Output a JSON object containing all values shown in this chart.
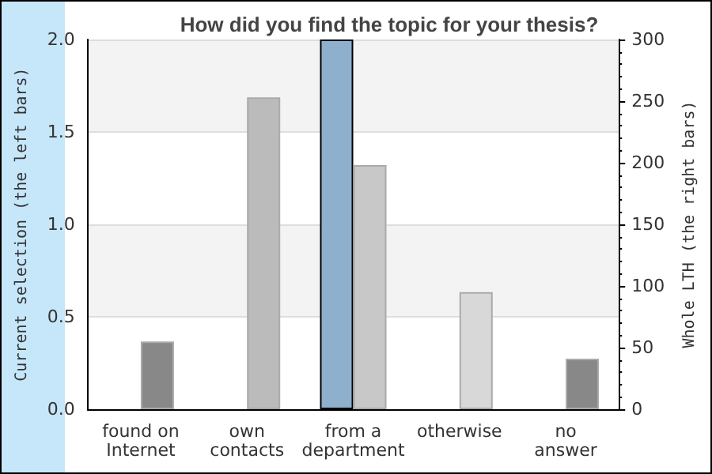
{
  "chart_data": {
    "type": "bar",
    "title": "How did you find the topic for your thesis?",
    "ylabel": "Current selection (the left bars)",
    "y2label": "Whole LTH (the right bars)",
    "categories": [
      "found on\nInternet",
      "own\ncontacts",
      "from a\ndepartment",
      "otherwise",
      "no\nanswer"
    ],
    "series": [
      {
        "color": "#8fb0cc",
        "values": [
          0,
          0,
          2,
          0,
          0
        ]
      },
      {
        "axis": "y2",
        "colors": [
          "#888888",
          "#bbbbbb",
          "#c8c8c8",
          "#d8d8d8",
          "#888888"
        ],
        "values": [
          55,
          253,
          198,
          95,
          41
        ]
      }
    ],
    "ylim": [
      0,
      2
    ],
    "yticks": [
      {
        "value": 0,
        "label": "0.0"
      },
      {
        "value": 0.5,
        "label": "0.5"
      },
      {
        "value": 1,
        "label": "1.0"
      },
      {
        "value": 1.5,
        "label": "1.5"
      },
      {
        "value": 2,
        "label": "2.0"
      }
    ],
    "y2lim": [
      0,
      300
    ],
    "y2ticks": [
      0,
      50,
      100,
      150,
      200,
      250,
      300
    ],
    "grid": "y"
  }
}
